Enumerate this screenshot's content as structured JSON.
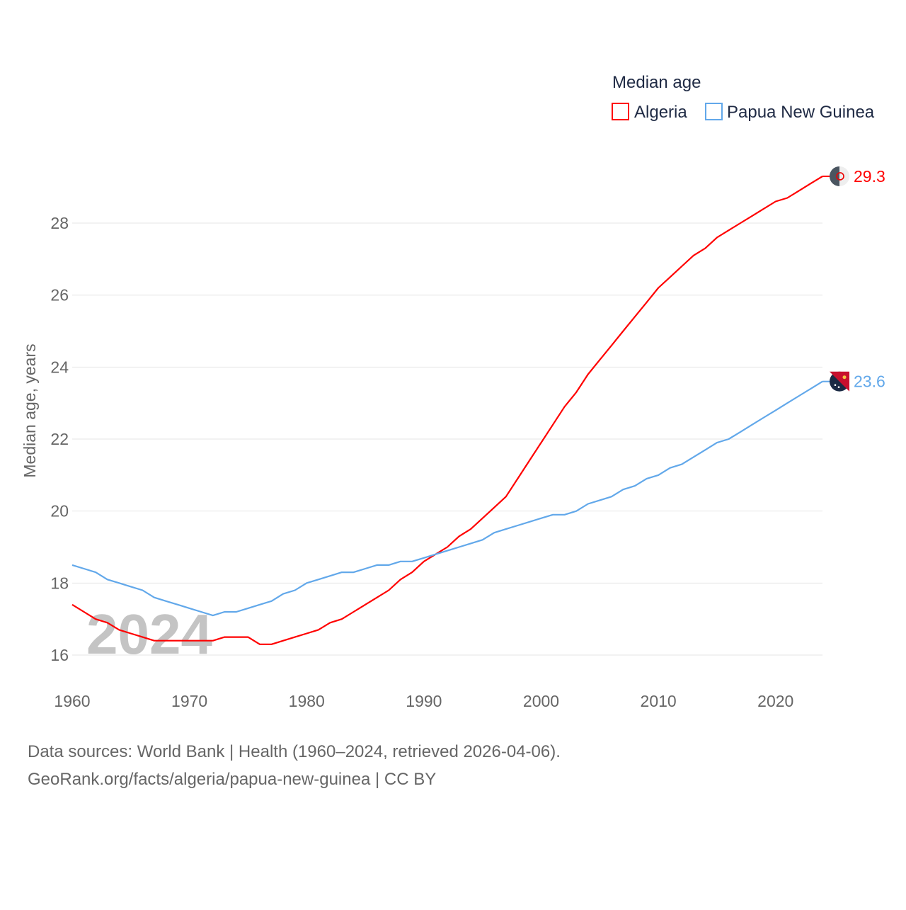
{
  "chart_data": {
    "type": "line",
    "title": "",
    "xlabel": "",
    "ylabel": "Median age, years",
    "xlim": [
      1960,
      2024
    ],
    "ylim": [
      15.3,
      30
    ],
    "x_ticks": [
      1960,
      1970,
      1980,
      1990,
      2000,
      2010,
      2020
    ],
    "y_ticks": [
      16,
      18,
      20,
      22,
      24,
      26,
      28
    ],
    "grid": true,
    "legend": {
      "title": "Median age",
      "placement": "top-right"
    },
    "watermark_year": "2024",
    "x": [
      1960,
      1961,
      1962,
      1963,
      1964,
      1965,
      1966,
      1967,
      1968,
      1969,
      1970,
      1971,
      1972,
      1973,
      1974,
      1975,
      1976,
      1977,
      1978,
      1979,
      1980,
      1981,
      1982,
      1983,
      1984,
      1985,
      1986,
      1987,
      1988,
      1989,
      1990,
      1991,
      1992,
      1993,
      1994,
      1995,
      1996,
      1997,
      1998,
      1999,
      2000,
      2001,
      2002,
      2003,
      2004,
      2005,
      2006,
      2007,
      2008,
      2009,
      2010,
      2011,
      2012,
      2013,
      2014,
      2015,
      2016,
      2017,
      2018,
      2019,
      2020,
      2021,
      2022,
      2023,
      2024
    ],
    "series": [
      {
        "name": "Algeria",
        "color": "#ff0000",
        "end_label": "29.3",
        "flag": "algeria-flag",
        "values": [
          17.4,
          17.2,
          17.0,
          16.9,
          16.7,
          16.6,
          16.5,
          16.4,
          16.4,
          16.4,
          16.4,
          16.4,
          16.4,
          16.5,
          16.5,
          16.5,
          16.3,
          16.3,
          16.4,
          16.5,
          16.6,
          16.7,
          16.9,
          17.0,
          17.2,
          17.4,
          17.6,
          17.8,
          18.1,
          18.3,
          18.6,
          18.8,
          19.0,
          19.3,
          19.5,
          19.8,
          20.1,
          20.4,
          20.9,
          21.4,
          21.9,
          22.4,
          22.9,
          23.3,
          23.8,
          24.2,
          24.6,
          25.0,
          25.4,
          25.8,
          26.2,
          26.5,
          26.8,
          27.1,
          27.3,
          27.6,
          27.8,
          28.0,
          28.2,
          28.4,
          28.6,
          28.7,
          28.9,
          29.1,
          29.3
        ]
      },
      {
        "name": "Papua New Guinea",
        "color": "#62a8ea",
        "end_label": "23.6",
        "flag": "papua-new-guinea-flag",
        "values": [
          18.5,
          18.4,
          18.3,
          18.1,
          18.0,
          17.9,
          17.8,
          17.6,
          17.5,
          17.4,
          17.3,
          17.2,
          17.1,
          17.2,
          17.2,
          17.3,
          17.4,
          17.5,
          17.7,
          17.8,
          18.0,
          18.1,
          18.2,
          18.3,
          18.3,
          18.4,
          18.5,
          18.5,
          18.6,
          18.6,
          18.7,
          18.8,
          18.9,
          19.0,
          19.1,
          19.2,
          19.4,
          19.5,
          19.6,
          19.7,
          19.8,
          19.9,
          19.9,
          20.0,
          20.2,
          20.3,
          20.4,
          20.6,
          20.7,
          20.9,
          21.0,
          21.2,
          21.3,
          21.5,
          21.7,
          21.9,
          22.0,
          22.2,
          22.4,
          22.6,
          22.8,
          23.0,
          23.2,
          23.4,
          23.6
        ]
      }
    ]
  },
  "footer": {
    "line1": "Data sources: World Bank | Health (1960–2024, retrieved 2026-04-06).",
    "line2": "GeoRank.org/facts/algeria/papua-new-guinea | CC BY"
  }
}
